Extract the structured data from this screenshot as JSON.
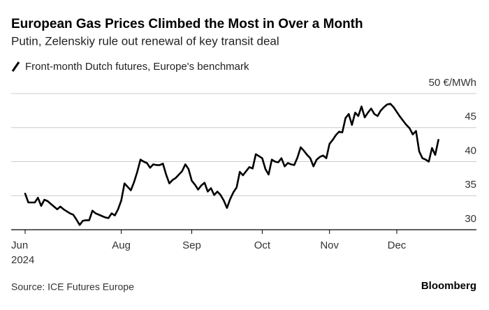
{
  "chart_data": {
    "type": "line",
    "title": "European Gas Prices Climbed the Most in Over a Month",
    "subtitle": "Putin, Zelenskiy rule out renewal of key transit deal",
    "source": "Source: ICE Futures Europe",
    "brand": "Bloomberg",
    "x_year": "2024",
    "categories": [
      "Jun",
      null,
      null,
      null,
      null,
      null,
      null,
      null,
      null,
      null,
      null,
      null,
      null,
      null,
      null,
      null,
      null,
      null,
      null,
      null,
      null,
      null,
      null,
      null,
      null,
      null,
      null,
      null,
      null,
      null,
      "Aug",
      null,
      null,
      null,
      null,
      null,
      null,
      null,
      null,
      null,
      null,
      null,
      null,
      null,
      null,
      null,
      null,
      null,
      null,
      null,
      null,
      null,
      "Sep",
      null,
      null,
      null,
      null,
      null,
      null,
      null,
      null,
      null,
      null,
      null,
      null,
      null,
      null,
      null,
      null,
      null,
      null,
      null,
      null,
      null,
      "Oct",
      null,
      null,
      null,
      null,
      null,
      null,
      null,
      null,
      null,
      null,
      null,
      null,
      null,
      null,
      null,
      null,
      null,
      null,
      null,
      null,
      "Nov",
      null,
      null,
      null,
      null,
      null,
      null,
      null,
      null,
      null,
      null,
      null,
      null,
      null,
      null,
      null,
      null,
      null,
      null,
      null,
      null,
      "Dec",
      null,
      null,
      null,
      null,
      null,
      null,
      null,
      null,
      null,
      null,
      null,
      null,
      null
    ],
    "series": [
      {
        "name": "Front-month Dutch futures, Europe's benchmark",
        "color": "#000000",
        "values": [
          35.3,
          34.0,
          34.0,
          34.0,
          34.7,
          33.5,
          34.4,
          34.2,
          33.8,
          33.4,
          33.0,
          33.4,
          33.0,
          32.7,
          32.4,
          32.2,
          31.5,
          30.7,
          31.3,
          31.4,
          31.4,
          32.8,
          32.4,
          32.2,
          32.0,
          31.8,
          31.7,
          32.4,
          32.1,
          33.0,
          34.3,
          36.8,
          36.3,
          35.8,
          37.0,
          38.5,
          40.3,
          40.0,
          39.8,
          39.1,
          39.6,
          39.5,
          39.5,
          39.7,
          38.1,
          36.8,
          37.3,
          37.6,
          38.1,
          38.6,
          39.6,
          38.9,
          37.2,
          36.6,
          35.9,
          36.5,
          36.9,
          35.6,
          36.1,
          35.1,
          35.6,
          35.1,
          34.3,
          33.2,
          34.5,
          35.5,
          36.2,
          38.5,
          38.0,
          38.6,
          39.2,
          39.0,
          41.1,
          40.8,
          40.5,
          38.9,
          38.1,
          40.3,
          40.0,
          39.9,
          40.5,
          39.3,
          39.8,
          39.6,
          39.5,
          40.6,
          42.1,
          41.6,
          41.0,
          40.5,
          39.3,
          40.3,
          40.7,
          40.9,
          40.5,
          42.6,
          43.2,
          43.9,
          44.4,
          44.3,
          46.4,
          47.0,
          45.4,
          47.2,
          46.7,
          48.1,
          46.5,
          47.2,
          47.8,
          47.0,
          46.7,
          47.5,
          48.0,
          48.4,
          48.5,
          48.0,
          47.3,
          46.6,
          46.0,
          45.4,
          44.9,
          44.0,
          44.5,
          41.5,
          40.5,
          40.3,
          40.0,
          42.0,
          41.0,
          43.2
        ]
      }
    ],
    "ylim": [
      30,
      50
    ],
    "yticks": [
      30,
      35,
      40,
      45,
      {
        "value": 50,
        "label": "50 €/MWh"
      }
    ],
    "grid": true
  }
}
